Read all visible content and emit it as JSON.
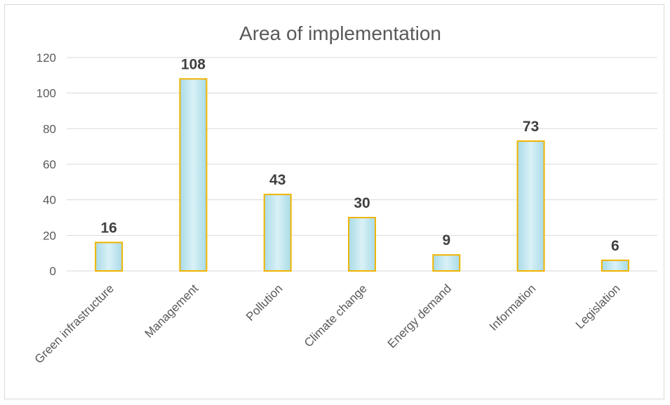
{
  "chart_data": {
    "type": "bar",
    "title": "Area of implementation",
    "categories": [
      "Green infrastructure",
      "Management",
      "Pollution",
      "Climate change",
      "Energy demand",
      "Information",
      "Legislation"
    ],
    "values": [
      16,
      108,
      43,
      30,
      9,
      73,
      6
    ],
    "ylim": [
      0,
      120
    ],
    "yticks": [
      0,
      20,
      40,
      60,
      80,
      100,
      120
    ],
    "grid": true,
    "legend": "none",
    "data_labels": true,
    "colors": {
      "bar_fill": "#bfe6ef",
      "bar_border": "#f0b400",
      "label": "#404040",
      "axis_text": "#595959",
      "grid": "#d9d9d9"
    }
  }
}
